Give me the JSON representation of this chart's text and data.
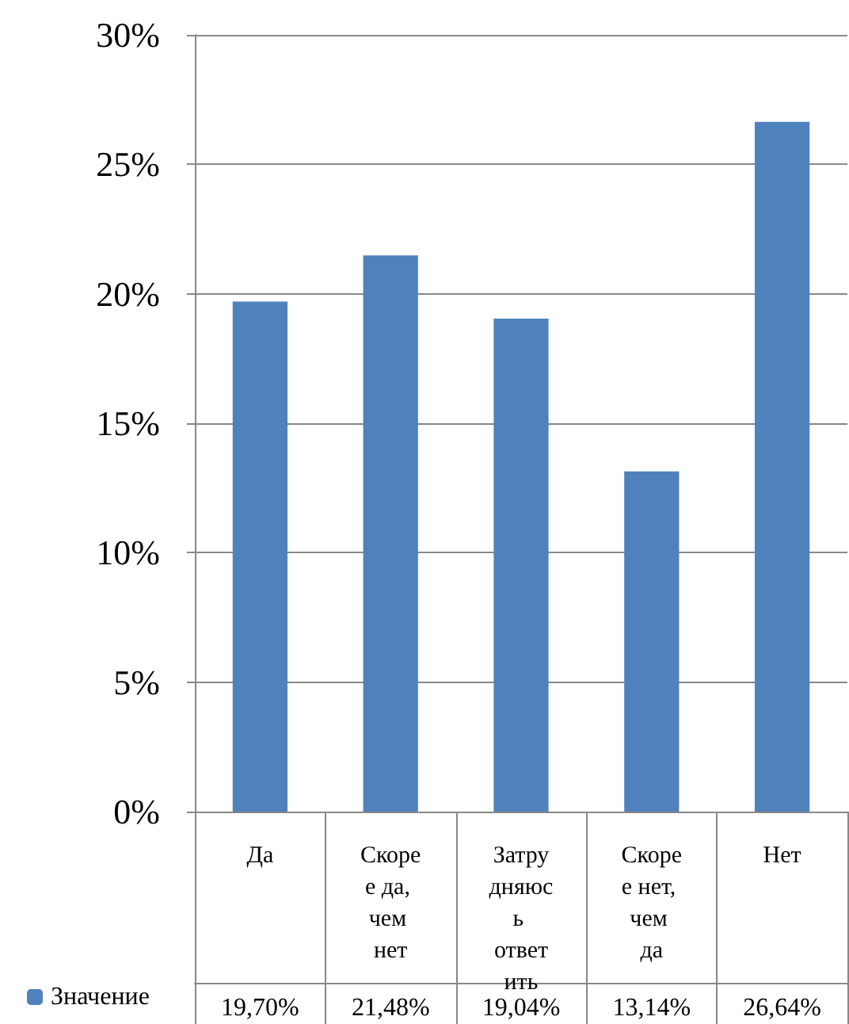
{
  "chart_data": {
    "type": "bar",
    "categories": [
      "Да",
      "Скорее да, чем нет",
      "Затрудняюсь ответить",
      "Скорее нет, чем да",
      "Нет"
    ],
    "series": [
      {
        "name": "Значение",
        "color": "#4f81bd",
        "values": [
          19.7,
          21.48,
          19.04,
          13.14,
          26.64
        ],
        "value_labels": [
          "19,70%",
          "21,48%",
          "19,04%",
          "13,14%",
          "26,64%"
        ]
      }
    ],
    "ylim": [
      0,
      30
    ],
    "yticks": [
      {
        "value": 0,
        "label": "0%"
      },
      {
        "value": 5,
        "label": "5%"
      },
      {
        "value": 10,
        "label": "10%"
      },
      {
        "value": 15,
        "label": "15%"
      },
      {
        "value": 20,
        "label": "20%"
      },
      {
        "value": 25,
        "label": "25%"
      },
      {
        "value": 30,
        "label": "30%"
      }
    ],
    "grid": "y",
    "legend": "bottom left"
  }
}
